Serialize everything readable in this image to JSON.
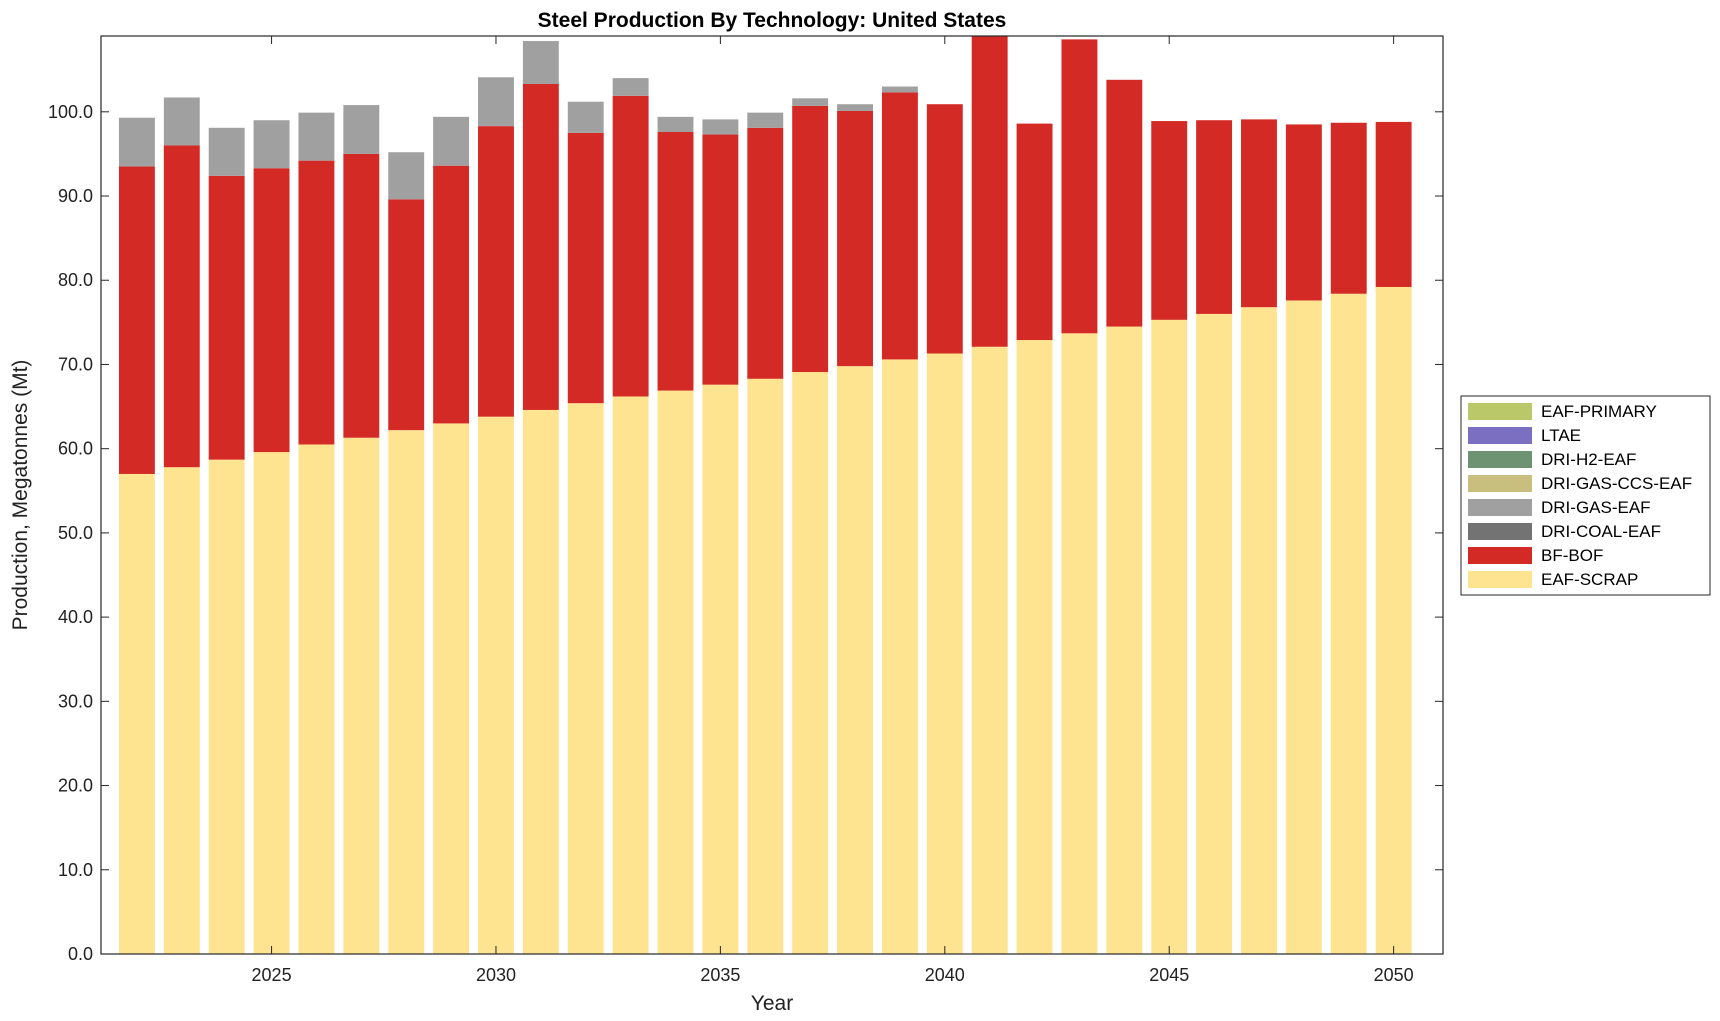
{
  "chart_data": {
    "type": "bar",
    "stacked": true,
    "title": "Steel Production By Technology: United States",
    "xlabel": "Year",
    "ylabel": "Production, Megatonnes (Mt)",
    "xlim": [
      2021.2,
      2051.1
    ],
    "ylim": [
      0,
      109
    ],
    "x_ticks": [
      2025,
      2030,
      2035,
      2040,
      2045,
      2050
    ],
    "y_ticks": [
      0,
      10,
      20,
      30,
      40,
      50,
      60,
      70,
      80,
      90,
      100
    ],
    "y_tick_labels": [
      "0.0",
      "10.0",
      "20.0",
      "30.0",
      "40.0",
      "50.0",
      "60.0",
      "70.0",
      "80.0",
      "90.0",
      "100.0"
    ],
    "grid": false,
    "legend_position": "right",
    "x": [
      2022,
      2023,
      2024,
      2025,
      2026,
      2027,
      2028,
      2029,
      2030,
      2031,
      2032,
      2033,
      2034,
      2035,
      2036,
      2037,
      2038,
      2039,
      2040,
      2041,
      2042,
      2043,
      2044,
      2045,
      2046,
      2047,
      2048,
      2049,
      2050
    ],
    "series": [
      {
        "name": "EAF-SCRAP",
        "color": "#FEE391",
        "values": [
          57.0,
          57.8,
          58.7,
          59.6,
          60.5,
          61.3,
          62.2,
          63.0,
          63.8,
          64.6,
          65.4,
          66.2,
          66.9,
          67.6,
          68.3,
          69.1,
          69.8,
          70.6,
          71.3,
          72.1,
          72.9,
          73.7,
          74.5,
          75.3,
          76.0,
          76.8,
          77.6,
          78.4,
          79.2
        ]
      },
      {
        "name": "BF-BOF",
        "color": "#D42A25",
        "values": [
          36.5,
          38.2,
          33.7,
          33.7,
          33.7,
          33.7,
          27.4,
          30.6,
          34.5,
          38.7,
          32.1,
          35.7,
          30.7,
          29.7,
          29.8,
          31.6,
          30.3,
          31.7,
          29.6,
          37.4,
          25.7,
          34.9,
          29.3,
          23.6,
          23.0,
          22.3,
          20.9,
          20.3,
          19.6
        ]
      },
      {
        "name": "DRI-COAL-EAF",
        "color": "#737373",
        "values": [
          0,
          0,
          0,
          0,
          0,
          0,
          0,
          0,
          0,
          0,
          0,
          0,
          0,
          0,
          0,
          0,
          0,
          0,
          0,
          0,
          0,
          0,
          0,
          0,
          0,
          0,
          0,
          0,
          0
        ]
      },
      {
        "name": "DRI-GAS-EAF",
        "color": "#A0A0A0",
        "values": [
          5.8,
          5.7,
          5.7,
          5.7,
          5.7,
          5.8,
          5.6,
          5.8,
          5.8,
          5.1,
          3.7,
          2.1,
          1.8,
          1.8,
          1.8,
          0.9,
          0.8,
          0.7,
          0,
          0,
          0,
          0,
          0,
          0,
          0,
          0,
          0,
          0,
          0
        ]
      },
      {
        "name": "DRI-GAS-CCS-EAF",
        "color": "#C8BE7E",
        "values": [
          0,
          0,
          0,
          0,
          0,
          0,
          0,
          0,
          0,
          0,
          0,
          0,
          0,
          0,
          0,
          0,
          0,
          0,
          0,
          0,
          0,
          0,
          0,
          0,
          0,
          0,
          0,
          0,
          0
        ]
      },
      {
        "name": "DRI-H2-EAF",
        "color": "#6E9373",
        "values": [
          0,
          0,
          0,
          0,
          0,
          0,
          0,
          0,
          0,
          0,
          0,
          0,
          0,
          0,
          0,
          0,
          0,
          0,
          0,
          0,
          0,
          0,
          0,
          0,
          0,
          0,
          0,
          0,
          0
        ]
      },
      {
        "name": "LTAE",
        "color": "#7B6FC2",
        "values": [
          0,
          0,
          0,
          0,
          0,
          0,
          0,
          0,
          0,
          0,
          0,
          0,
          0,
          0,
          0,
          0,
          0,
          0,
          0,
          0,
          0,
          0,
          0,
          0,
          0,
          0,
          0,
          0,
          0
        ]
      },
      {
        "name": "EAF-PRIMARY",
        "color": "#BBC86A",
        "values": [
          0,
          0,
          0,
          0,
          0,
          0,
          0,
          0,
          0,
          0,
          0,
          0,
          0,
          0,
          0,
          0,
          0,
          0,
          0,
          0,
          0,
          0,
          0,
          0,
          0,
          0,
          0,
          0,
          0
        ]
      }
    ],
    "legend_order": [
      "EAF-PRIMARY",
      "LTAE",
      "DRI-H2-EAF",
      "DRI-GAS-CCS-EAF",
      "DRI-GAS-EAF",
      "DRI-COAL-EAF",
      "BF-BOF",
      "EAF-SCRAP"
    ]
  }
}
